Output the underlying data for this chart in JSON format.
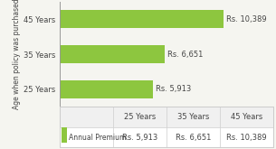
{
  "categories": [
    "45 Years",
    "35 Years",
    "25 Years"
  ],
  "values": [
    10389,
    6651,
    5913
  ],
  "labels": [
    "Rs. 10,389",
    "Rs. 6,651",
    "Rs. 5,913"
  ],
  "bar_color": "#8dc63f",
  "ylabel": "Age when policy was purchased",
  "table_col_labels": [
    "25 Years",
    "35 Years",
    "45 Years"
  ],
  "table_row_label": "Annual Premium",
  "table_values": [
    "Rs. 5,913",
    "Rs. 6,651",
    "Rs. 10,389"
  ],
  "legend_color": "#8dc63f",
  "xlim": [
    0,
    13500
  ],
  "background_color": "#f5f5f0",
  "border_color": "#cccccc",
  "label_fontsize": 6.0,
  "tick_fontsize": 6.0,
  "ylabel_fontsize": 5.5
}
